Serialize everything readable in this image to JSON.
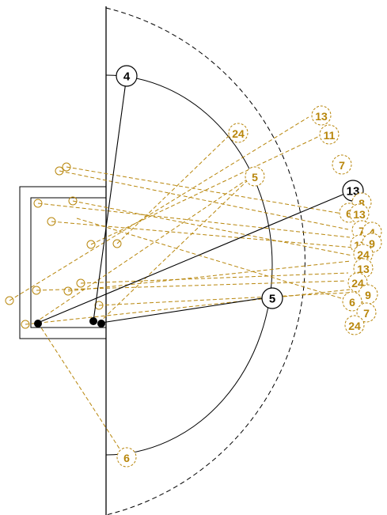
{
  "colors": {
    "ink": "#000000",
    "accent": "#b8860b",
    "background": "#ffffff"
  },
  "solid_endpoints": [
    {
      "id": "e4",
      "label": "4"
    },
    {
      "id": "e5",
      "label": "5"
    },
    {
      "id": "e13",
      "label": "13"
    }
  ],
  "dashed_endpoints": [
    {
      "id": "d24a",
      "label": "24"
    },
    {
      "id": "d13a",
      "label": "13"
    },
    {
      "id": "d11",
      "label": "11"
    },
    {
      "id": "d5",
      "label": "5"
    },
    {
      "id": "d7a",
      "label": "7"
    },
    {
      "id": "d8",
      "label": "8"
    },
    {
      "id": "d6a",
      "label": "6"
    },
    {
      "id": "d13b",
      "label": "13"
    },
    {
      "id": "d7b",
      "label": "7"
    },
    {
      "id": "d4",
      "label": "4"
    },
    {
      "id": "d17",
      "label": "17"
    },
    {
      "id": "d9a",
      "label": "9"
    },
    {
      "id": "d24b",
      "label": "24"
    },
    {
      "id": "d13c",
      "label": "13"
    },
    {
      "id": "d24c",
      "label": "24"
    },
    {
      "id": "d9b",
      "label": "9"
    },
    {
      "id": "d6b",
      "label": "6"
    },
    {
      "id": "d7c",
      "label": "7"
    },
    {
      "id": "d24d",
      "label": "24"
    },
    {
      "id": "d6c",
      "label": "6"
    }
  ]
}
